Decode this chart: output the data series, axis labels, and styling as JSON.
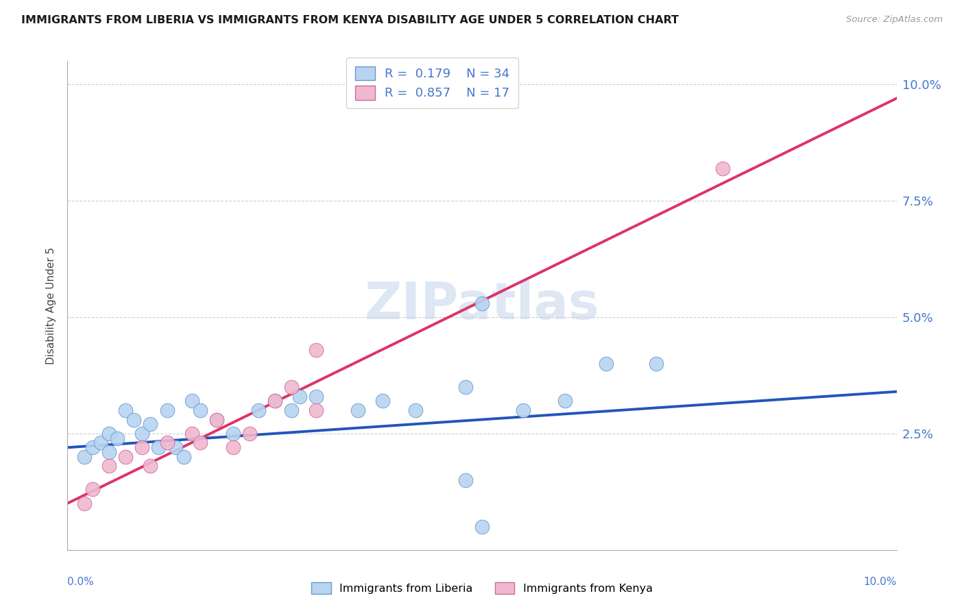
{
  "title": "IMMIGRANTS FROM LIBERIA VS IMMIGRANTS FROM KENYA DISABILITY AGE UNDER 5 CORRELATION CHART",
  "source": "Source: ZipAtlas.com",
  "ylabel": "Disability Age Under 5",
  "legend_label1": "Immigrants from Liberia",
  "legend_label2": "Immigrants from Kenya",
  "r1": 0.179,
  "n1": 34,
  "r2": 0.857,
  "n2": 17,
  "xlim": [
    0.0,
    0.1
  ],
  "ylim": [
    0.0,
    0.105
  ],
  "ytick_vals": [
    0.025,
    0.05,
    0.075,
    0.1
  ],
  "ytick_labels": [
    "2.5%",
    "5.0%",
    "7.5%",
    "10.0%"
  ],
  "color_liberia": "#b8d4f0",
  "edge_liberia": "#6898d0",
  "color_kenya": "#f0b8d0",
  "edge_kenya": "#d06898",
  "line_color_liberia": "#2255bb",
  "line_color_kenya": "#dd3366",
  "watermark_color": "#c8d8ee",
  "liberia_x": [
    0.002,
    0.003,
    0.004,
    0.005,
    0.005,
    0.006,
    0.007,
    0.008,
    0.009,
    0.01,
    0.011,
    0.012,
    0.013,
    0.014,
    0.015,
    0.016,
    0.018,
    0.02,
    0.023,
    0.025,
    0.027,
    0.028,
    0.03,
    0.035,
    0.038,
    0.042,
    0.048,
    0.05,
    0.055,
    0.06,
    0.065,
    0.071,
    0.048,
    0.05
  ],
  "liberia_y": [
    0.02,
    0.022,
    0.023,
    0.021,
    0.025,
    0.024,
    0.03,
    0.028,
    0.025,
    0.027,
    0.022,
    0.03,
    0.022,
    0.02,
    0.032,
    0.03,
    0.028,
    0.025,
    0.03,
    0.032,
    0.03,
    0.033,
    0.033,
    0.03,
    0.032,
    0.03,
    0.035,
    0.053,
    0.03,
    0.032,
    0.04,
    0.04,
    0.015,
    0.005
  ],
  "kenya_x": [
    0.002,
    0.003,
    0.005,
    0.007,
    0.009,
    0.01,
    0.012,
    0.015,
    0.016,
    0.018,
    0.02,
    0.022,
    0.025,
    0.027,
    0.03,
    0.03,
    0.079
  ],
  "kenya_y": [
    0.01,
    0.013,
    0.018,
    0.02,
    0.022,
    0.018,
    0.023,
    0.025,
    0.023,
    0.028,
    0.022,
    0.025,
    0.032,
    0.035,
    0.03,
    0.043,
    0.082
  ],
  "blue_line_x0": 0.0,
  "blue_line_y0": 0.022,
  "blue_line_x1": 0.1,
  "blue_line_y1": 0.034,
  "pink_line_x0": 0.0,
  "pink_line_y0": 0.01,
  "pink_line_x1": 0.1,
  "pink_line_y1": 0.097
}
